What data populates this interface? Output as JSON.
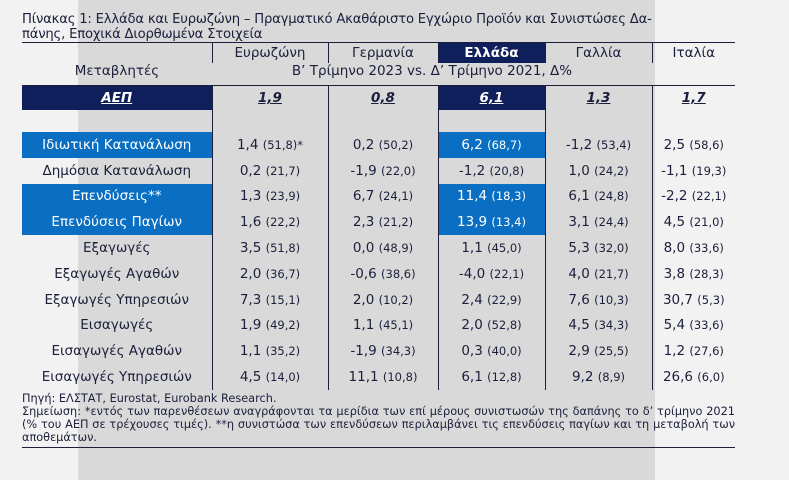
{
  "title": "Πίνακας 1: Ελλάδα και Ευρωζώνη – Πραγματικό Ακαθάριστο Εγχώριο Προϊόν και Συνιστώσες Δαπάνης, Εποχικά Διορθωμένα Στοιχεία",
  "title_line1": "Πίνακας 1: Ελλάδα και Ευρωζώνη – Πραγματικό Ακαθάριστο Εγχώριο Προϊόν και Συνιστώσες Δα-",
  "title_line2": "πάνης, Εποχικά Διορθωμένα Στοιχεία",
  "header": {
    "variables_label": "Μεταβλητές",
    "columns": [
      "Ευρωζώνη",
      "Γερμανία",
      "Ελλάδα",
      "Γαλλία",
      "Ιταλία"
    ],
    "subtitle": "Β’ Τρίμηνο 2023 vs. Δ’ Τρίμηνο 2021, Δ%"
  },
  "gdp": {
    "label": "ΑΕΠ",
    "values": [
      "1,9",
      "0,8",
      "6,1",
      "1,3",
      "1,7"
    ]
  },
  "rows": [
    {
      "label": "Ιδιωτική Κατανάλωση",
      "highlight": true,
      "cells": [
        {
          "v": "1,4",
          "s": "(51,8)*"
        },
        {
          "v": "0,2",
          "s": "(50,2)"
        },
        {
          "v": "6,2",
          "s": "(68,7)"
        },
        {
          "v": "-1,2",
          "s": "(53,4)"
        },
        {
          "v": "2,5",
          "s": "(58,6)"
        }
      ]
    },
    {
      "label": "Δημόσια Κατανάλωση",
      "highlight": false,
      "cells": [
        {
          "v": "0,2",
          "s": "(21,7)"
        },
        {
          "v": "-1,9",
          "s": "(22,0)"
        },
        {
          "v": "-1,2",
          "s": "(20,8)"
        },
        {
          "v": "1,0",
          "s": "(24,2)"
        },
        {
          "v": "-1,1",
          "s": "(19,3)"
        }
      ]
    },
    {
      "label": "Επενδύσεις**",
      "highlight": true,
      "cells": [
        {
          "v": "1,3",
          "s": "(23,9)"
        },
        {
          "v": "6,7",
          "s": "(24,1)"
        },
        {
          "v": "11,4",
          "s": "(18,3)"
        },
        {
          "v": "6,1",
          "s": "(24,8)"
        },
        {
          "v": "-2,2",
          "s": "(22,1)"
        }
      ]
    },
    {
      "label": "Επενδύσεις Παγίων",
      "highlight": true,
      "cells": [
        {
          "v": "1,6",
          "s": "(22,2)"
        },
        {
          "v": "2,3",
          "s": "(21,2)"
        },
        {
          "v": "13,9",
          "s": "(13,4)"
        },
        {
          "v": "3,1",
          "s": "(24,4)"
        },
        {
          "v": "4,5",
          "s": "(21,0)"
        }
      ]
    },
    {
      "label": "Εξαγωγές",
      "highlight": false,
      "cells": [
        {
          "v": "3,5",
          "s": "(51,8)"
        },
        {
          "v": "0,0",
          "s": "(48,9)"
        },
        {
          "v": "1,1",
          "s": "(45,0)"
        },
        {
          "v": "5,3",
          "s": "(32,0)"
        },
        {
          "v": "8,0",
          "s": "(33,6)"
        }
      ]
    },
    {
      "label": "Εξαγωγές Αγαθών",
      "highlight": false,
      "cells": [
        {
          "v": "2,0",
          "s": "(36,7)"
        },
        {
          "v": "-0,6",
          "s": "(38,6)"
        },
        {
          "v": "-4,0",
          "s": "(22,1)"
        },
        {
          "v": "4,0",
          "s": "(21,7)"
        },
        {
          "v": "3,8",
          "s": "(28,3)"
        }
      ]
    },
    {
      "label": "Εξαγωγές Υπηρεσιών",
      "highlight": false,
      "cells": [
        {
          "v": "7,3",
          "s": "(15,1)"
        },
        {
          "v": "2,0",
          "s": "(10,2)"
        },
        {
          "v": "2,4",
          "s": "(22,9)"
        },
        {
          "v": "7,6",
          "s": "(10,3)"
        },
        {
          "v": "30,7",
          "s": "(5,3)"
        }
      ]
    },
    {
      "label": "Εισαγωγές",
      "highlight": false,
      "cells": [
        {
          "v": "1,9",
          "s": "(49,2)"
        },
        {
          "v": "1,1",
          "s": "(45,1)"
        },
        {
          "v": "2,0",
          "s": "(52,8)"
        },
        {
          "v": "4,5",
          "s": "(34,3)"
        },
        {
          "v": "5,4",
          "s": "(33,6)"
        }
      ]
    },
    {
      "label": "Εισαγωγές Αγαθών",
      "highlight": false,
      "cells": [
        {
          "v": "1,1",
          "s": "(35,2)"
        },
        {
          "v": "-1,9",
          "s": "(34,3)"
        },
        {
          "v": "0,3",
          "s": "(40,0)"
        },
        {
          "v": "2,9",
          "s": "(25,5)"
        },
        {
          "v": "1,2",
          "s": "(27,6)"
        }
      ]
    },
    {
      "label": "Εισαγωγές Υπηρεσιών",
      "highlight": false,
      "cells": [
        {
          "v": "4,5",
          "s": "(14,0)"
        },
        {
          "v": "11,1",
          "s": "(10,8)"
        },
        {
          "v": "6,1",
          "s": "(12,8)"
        },
        {
          "v": "9,2",
          "s": "(8,9)"
        },
        {
          "v": "26,6",
          "s": "(6,0)"
        }
      ]
    }
  ],
  "source": "Πηγή: ΕΛΣΤΑΤ, Eurostat, Eurobank Research.",
  "note": "Σημείωση: *εντός των παρενθέσεων αναγράφονται τα μερίδια των επί μέρους συνιστωσών της δαπάνης το δ’ τρίμηνο 2021 (% του ΑΕΠ σε τρέχουσες τιμές). **η συνιστώσα των επενδύσεων περιλαμβάνει τις επενδύσεις παγίων και τη μεταβολή των αποθεμάτων.",
  "colors": {
    "navy": "#0e1f5b",
    "highlight_blue": "#0a6fc2",
    "grey_bg": "#d9d9d9",
    "light_bg": "#f2f2f2"
  }
}
